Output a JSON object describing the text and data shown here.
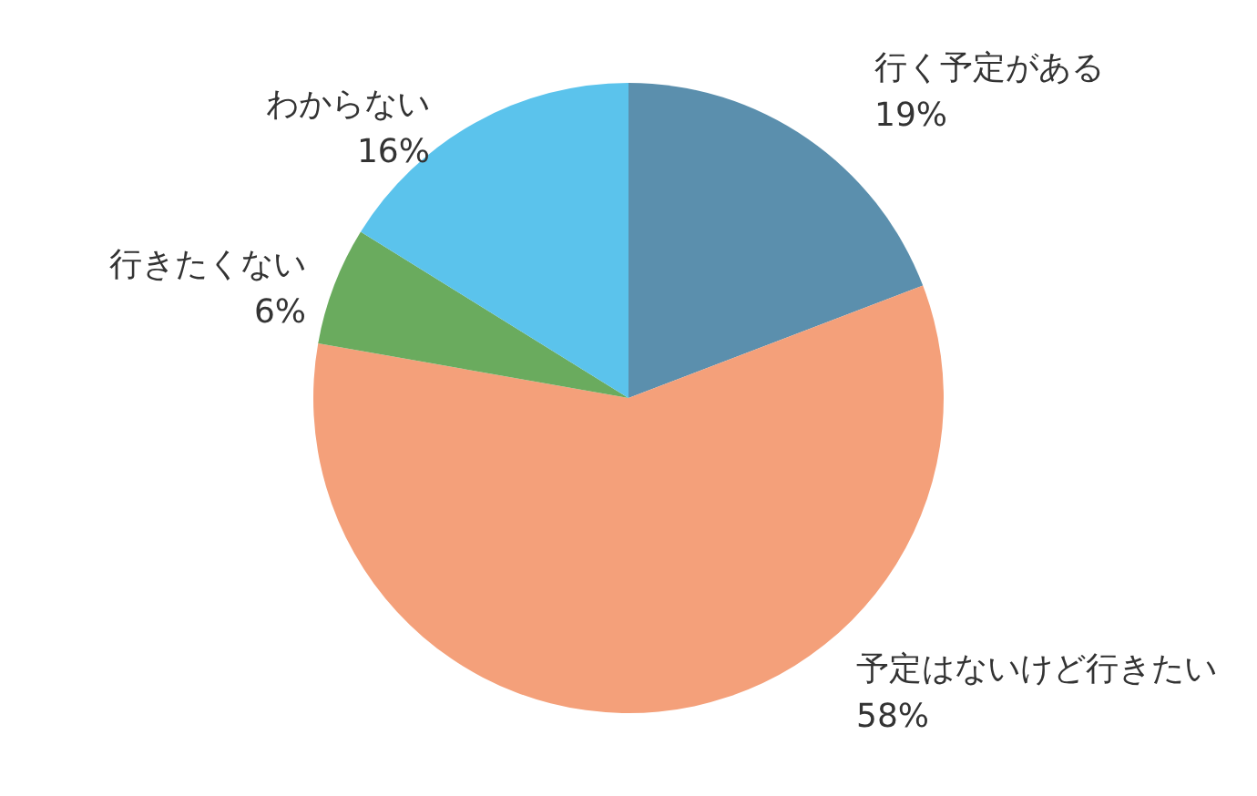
{
  "chart_data": {
    "type": "pie",
    "categories": [
      "行く予定がある",
      "予定はないけど行きたい",
      "行きたくない",
      "わからない"
    ],
    "values": [
      19,
      58,
      6,
      16
    ],
    "value_labels": [
      "19%",
      "58%",
      "6%",
      "16%"
    ],
    "colors": [
      "#5b8fad",
      "#f4a07a",
      "#6aab5e",
      "#5bc3ec"
    ]
  }
}
